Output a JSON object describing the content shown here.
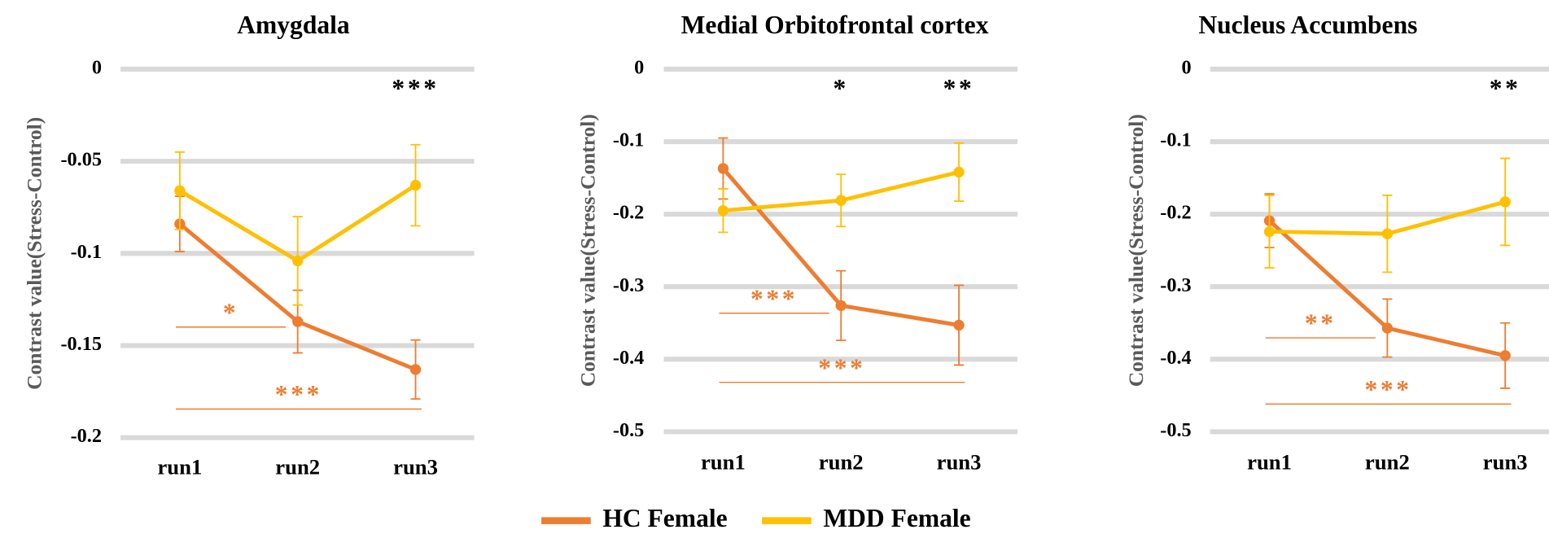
{
  "chart_data": [
    {
      "type": "line",
      "title": "Amygdala",
      "y_label": "Contrast value(Stress-Control)",
      "categories": [
        "run1",
        "run2",
        "run3"
      ],
      "ylim": [
        -0.2,
        0
      ],
      "yticks": [
        0,
        -0.05,
        -0.1,
        -0.15,
        -0.2
      ],
      "grid": true,
      "series": [
        {
          "name": "HC Female",
          "color": "#ed7d31",
          "values": [
            -0.084,
            -0.137,
            -0.163
          ],
          "errors": [
            0.015,
            0.017,
            0.016
          ]
        },
        {
          "name": "MDD Female",
          "color": "#ffc000",
          "values": [
            -0.066,
            -0.104,
            -0.063
          ],
          "errors": [
            0.021,
            0.024,
            0.022
          ]
        }
      ],
      "group_significance": [
        {
          "text": "***",
          "x": "run3"
        }
      ],
      "run_significance": [
        {
          "text": "*",
          "from": "run1",
          "to": "run2",
          "color": "#ed7d31"
        },
        {
          "text": "***",
          "from": "run1",
          "to": "run3",
          "color": "#ed7d31"
        }
      ]
    },
    {
      "type": "line",
      "title": "Medial Orbitofrontal cortex",
      "y_label": "Contrast value(Stress-Control)",
      "categories": [
        "run1",
        "run2",
        "run3"
      ],
      "ylim": [
        -0.5,
        0
      ],
      "yticks": [
        0,
        -0.1,
        -0.2,
        -0.3,
        -0.4,
        -0.5
      ],
      "grid": true,
      "series": [
        {
          "name": "HC Female",
          "color": "#ed7d31",
          "values": [
            -0.137,
            -0.326,
            -0.353
          ],
          "errors": [
            0.042,
            0.048,
            0.055
          ]
        },
        {
          "name": "MDD Female",
          "color": "#ffc000",
          "values": [
            -0.195,
            -0.181,
            -0.142
          ],
          "errors": [
            0.03,
            0.036,
            0.04
          ]
        }
      ],
      "group_significance": [
        {
          "text": "*",
          "x": "run2"
        },
        {
          "text": "**",
          "x": "run3"
        }
      ],
      "run_significance": [
        {
          "text": "***",
          "from": "run1",
          "to": "run2",
          "color": "#ed7d31"
        },
        {
          "text": "***",
          "from": "run1",
          "to": "run3",
          "color": "#ed7d31"
        }
      ]
    },
    {
      "type": "line",
      "title": "Nucleus Accumbens",
      "y_label": "Contrast value(Stress-Control)",
      "categories": [
        "run1",
        "run2",
        "run3"
      ],
      "ylim": [
        -0.5,
        0
      ],
      "yticks": [
        0,
        -0.1,
        -0.2,
        -0.3,
        -0.4,
        -0.5
      ],
      "grid": true,
      "series": [
        {
          "name": "HC Female",
          "color": "#ed7d31",
          "values": [
            -0.209,
            -0.357,
            -0.395
          ],
          "errors": [
            0.037,
            0.04,
            0.045
          ]
        },
        {
          "name": "MDD Female",
          "color": "#ffc000",
          "values": [
            -0.224,
            -0.227,
            -0.183
          ],
          "errors": [
            0.05,
            0.053,
            0.06
          ]
        }
      ],
      "group_significance": [
        {
          "text": "**",
          "x": "run3"
        }
      ],
      "run_significance": [
        {
          "text": "**",
          "from": "run1",
          "to": "run2",
          "color": "#ed7d31"
        },
        {
          "text": "***",
          "from": "run1",
          "to": "run3",
          "color": "#ed7d31"
        }
      ]
    }
  ]
}
